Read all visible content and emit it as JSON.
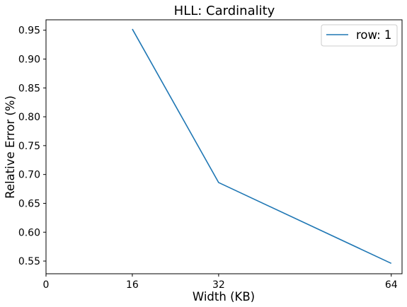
{
  "chart_data": {
    "type": "line",
    "title": "HLL: Cardinality",
    "xlabel": "Width (KB)",
    "ylabel": "Relative Error (%)",
    "xlim": [
      0,
      66
    ],
    "ylim": [
      0.528,
      0.968
    ],
    "xticks": [
      0,
      16,
      32,
      64
    ],
    "xtick_labels": [
      "0",
      "16",
      "32",
      "64"
    ],
    "yticks": [
      0.55,
      0.6,
      0.65,
      0.7,
      0.75,
      0.8,
      0.85,
      0.9,
      0.95
    ],
    "ytick_labels": [
      "0.55",
      "0.60",
      "0.65",
      "0.70",
      "0.75",
      "0.80",
      "0.85",
      "0.90",
      "0.95"
    ],
    "grid": false,
    "legend_position": "top-right",
    "series": [
      {
        "name": "row: 1",
        "color": "#1f77b4",
        "x": [
          16,
          32,
          64
        ],
        "y": [
          0.952,
          0.686,
          0.546
        ]
      }
    ]
  }
}
